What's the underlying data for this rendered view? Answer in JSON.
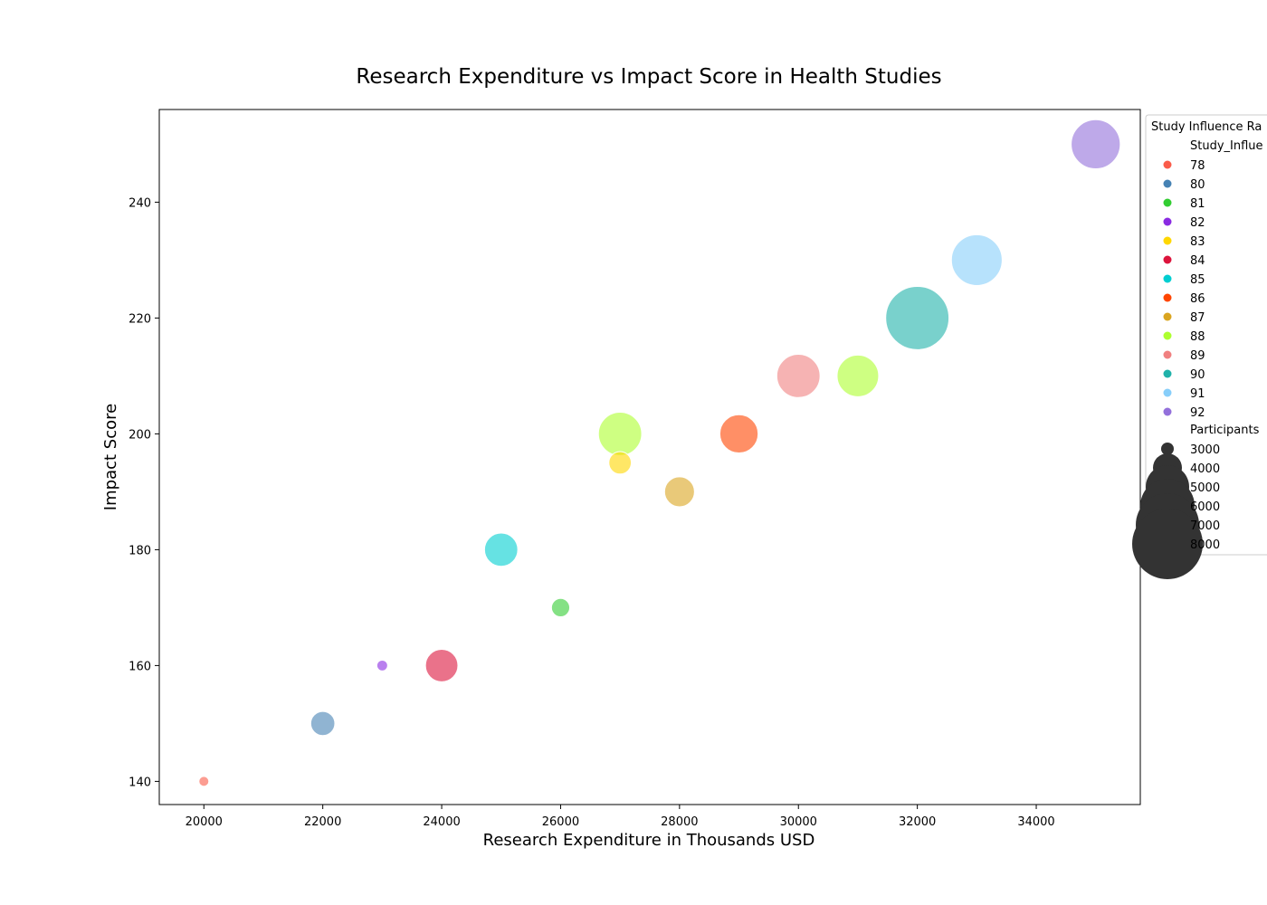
{
  "chart_data": {
    "type": "scatter",
    "title": "Research Expenditure vs Impact Score in Health Studies",
    "xlabel": "Research Expenditure in Thousands USD",
    "ylabel": "Impact Score",
    "xlim": [
      19250,
      35750
    ],
    "ylim": [
      136,
      256
    ],
    "xticks": [
      20000,
      22000,
      24000,
      26000,
      28000,
      30000,
      32000,
      34000
    ],
    "yticks": [
      140,
      160,
      180,
      200,
      220,
      240
    ],
    "legend": {
      "title": "Study Influence Ra",
      "hue_title": "Study_Influe",
      "size_title": "Participants",
      "placement": "outside right",
      "hue_entries": [
        {
          "label": "78",
          "color": "#fa5c4a"
        },
        {
          "label": "80",
          "color": "#4682b4"
        },
        {
          "label": "81",
          "color": "#32cd32"
        },
        {
          "label": "82",
          "color": "#8a2be2"
        },
        {
          "label": "83",
          "color": "#ffd700"
        },
        {
          "label": "84",
          "color": "#dc143c"
        },
        {
          "label": "85",
          "color": "#00ced1"
        },
        {
          "label": "86",
          "color": "#ff4500"
        },
        {
          "label": "87",
          "color": "#daa520"
        },
        {
          "label": "88",
          "color": "#adff2f"
        },
        {
          "label": "89",
          "color": "#f08080"
        },
        {
          "label": "90",
          "color": "#20b2aa"
        },
        {
          "label": "91",
          "color": "#87cefa"
        },
        {
          "label": "92",
          "color": "#9370db"
        }
      ],
      "size_entries": [
        "3000",
        "4000",
        "5000",
        "6000",
        "7000",
        "8000"
      ]
    },
    "points": [
      {
        "x": 20000,
        "y": 140,
        "influence": 78,
        "participants": 1500
      },
      {
        "x": 22000,
        "y": 150,
        "influence": 80,
        "participants": 3200
      },
      {
        "x": 23000,
        "y": 160,
        "influence": 82,
        "participants": 1600
      },
      {
        "x": 24000,
        "y": 160,
        "influence": 84,
        "participants": 4200
      },
      {
        "x": 25000,
        "y": 180,
        "influence": 85,
        "participants": 4300
      },
      {
        "x": 26000,
        "y": 170,
        "influence": 81,
        "participants": 2500
      },
      {
        "x": 27000,
        "y": 200,
        "influence": 88,
        "participants": 5500
      },
      {
        "x": 27000,
        "y": 195,
        "influence": 83,
        "participants": 3000
      },
      {
        "x": 28000,
        "y": 190,
        "influence": 87,
        "participants": 3900
      },
      {
        "x": 29000,
        "y": 200,
        "influence": 86,
        "participants": 4900
      },
      {
        "x": 30000,
        "y": 210,
        "influence": 89,
        "participants": 5500
      },
      {
        "x": 31000,
        "y": 210,
        "influence": 88,
        "participants": 5300
      },
      {
        "x": 32000,
        "y": 220,
        "influence": 90,
        "participants": 7900
      },
      {
        "x": 33000,
        "y": 230,
        "influence": 91,
        "participants": 6400
      },
      {
        "x": 35000,
        "y": 250,
        "influence": 92,
        "participants": 6200
      }
    ]
  }
}
